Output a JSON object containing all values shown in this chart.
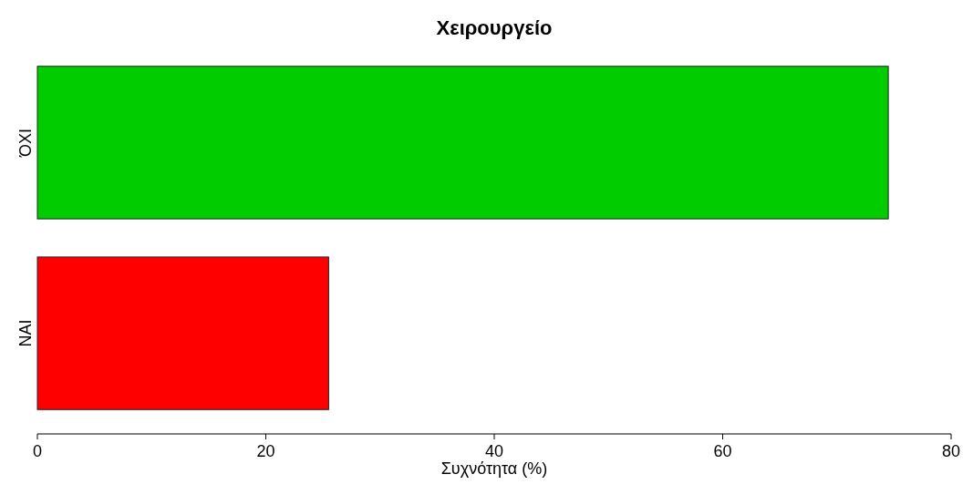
{
  "chart_data": {
    "type": "bar",
    "title": "Χειρουργείο",
    "xlabel": "Συχνότητα (%)",
    "orientation": "horizontal",
    "categories": [
      "ΌΧΙ",
      "ΝΑΙ"
    ],
    "values": [
      74.5,
      25.5
    ],
    "colors": [
      "#00cc00",
      "#ff0000"
    ],
    "xlim": [
      0,
      80
    ],
    "xticks": [
      0,
      20,
      40,
      60,
      80
    ],
    "grid": false
  }
}
